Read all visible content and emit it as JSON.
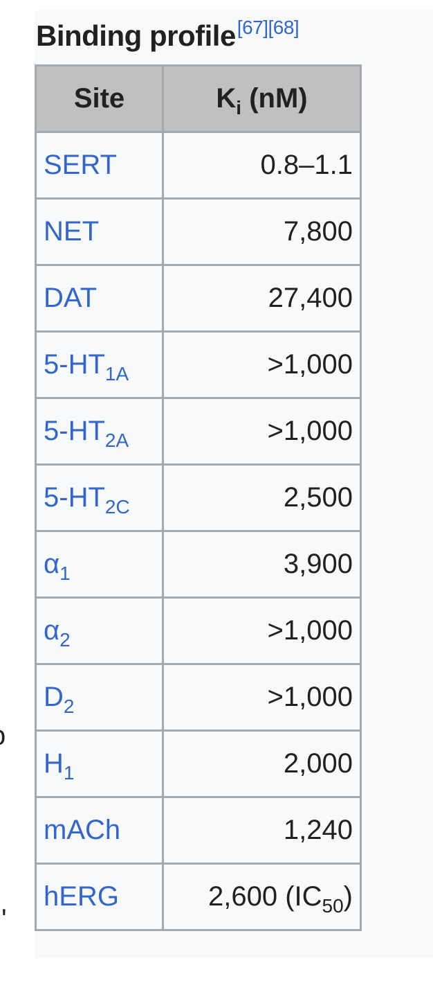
{
  "caption": {
    "title": "Binding profile",
    "refs": "[67][68]"
  },
  "table": {
    "headers": {
      "site": "Site",
      "ki_main": "K",
      "ki_sub": "i",
      "ki_unit": " (nM)"
    },
    "rows": [
      {
        "site": "SERT",
        "sub": "",
        "value": "0.8–1.1",
        "value_sub": "",
        "value_end": ""
      },
      {
        "site": "NET",
        "sub": "",
        "value": "7,800",
        "value_sub": "",
        "value_end": ""
      },
      {
        "site": "DAT",
        "sub": "",
        "value": "27,400",
        "value_sub": "",
        "value_end": ""
      },
      {
        "site": "5-HT",
        "sub": "1A",
        "value": ">1,000",
        "value_sub": "",
        "value_end": ""
      },
      {
        "site": "5-HT",
        "sub": "2A",
        "value": ">1,000",
        "value_sub": "",
        "value_end": ""
      },
      {
        "site": "5-HT",
        "sub": "2C",
        "value": "2,500",
        "value_sub": "",
        "value_end": ""
      },
      {
        "site": "α",
        "sub": "1",
        "value": "3,900",
        "value_sub": "",
        "value_end": ""
      },
      {
        "site": "α",
        "sub": "2",
        "value": ">1,000",
        "value_sub": "",
        "value_end": ""
      },
      {
        "site": "D",
        "sub": "2",
        "value": ">1,000",
        "value_sub": "",
        "value_end": ""
      },
      {
        "site": "H",
        "sub": "1",
        "value": "2,000",
        "value_sub": "",
        "value_end": ""
      },
      {
        "site": "mACh",
        "sub": "",
        "value": "1,240",
        "value_sub": "",
        "value_end": ""
      },
      {
        "site": "hERG",
        "sub": "",
        "value": "2,600 (IC",
        "value_sub": "50",
        "value_end": ")"
      }
    ]
  },
  "body_fragments": [
    "o",
    "'"
  ],
  "colors": {
    "link": "#3366cc",
    "header_bg": "#c0c0c0",
    "border": "#a2a9b1",
    "panel_bg": "#f8f9fa"
  }
}
